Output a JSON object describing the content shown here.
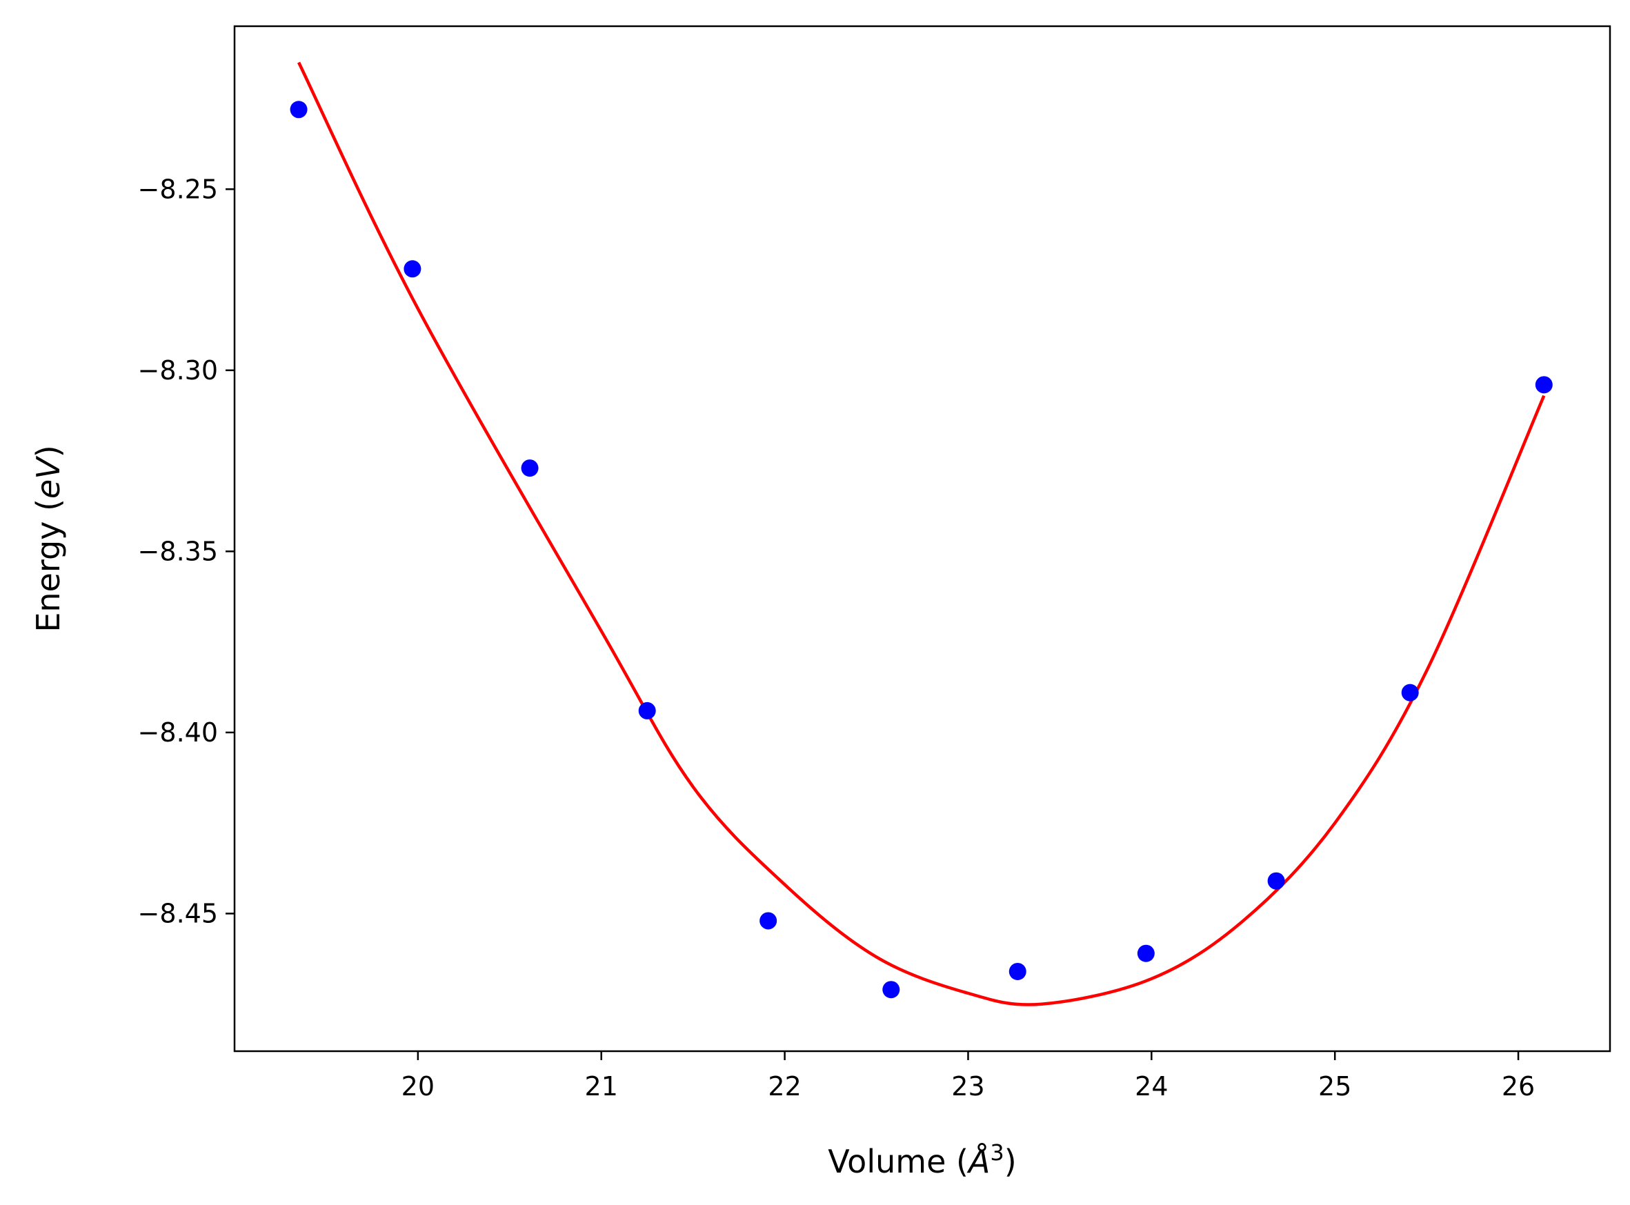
{
  "chart_data": {
    "type": "scatter",
    "xlabel": "Volume (Å³)",
    "ylabel": "Energy (eV)",
    "xlabel_parts": {
      "prefix": "Volume (",
      "symbol": "Å",
      "superscript": "3",
      "suffix": ")"
    },
    "ylabel_parts": {
      "prefix": "Energy (",
      "italic": "eV",
      "suffix": ")"
    },
    "xlim": [
      19.0,
      26.5
    ],
    "ylim": [
      -8.488,
      -8.205
    ],
    "x_ticks": [
      20,
      21,
      22,
      23,
      24,
      25,
      26
    ],
    "x_tick_labels": [
      "20",
      "21",
      "22",
      "23",
      "24",
      "25",
      "26"
    ],
    "y_ticks": [
      -8.25,
      -8.3,
      -8.35,
      -8.4,
      -8.45
    ],
    "y_tick_labels": [
      "−8.25",
      "−8.30",
      "−8.35",
      "−8.40",
      "−8.45"
    ],
    "grid": false,
    "series": [
      {
        "kind": "scatter",
        "color": "#0000ff",
        "points": [
          [
            19.35,
            -8.228
          ],
          [
            19.97,
            -8.272
          ],
          [
            20.61,
            -8.327
          ],
          [
            21.25,
            -8.394
          ],
          [
            21.91,
            -8.452
          ],
          [
            22.58,
            -8.471
          ],
          [
            23.27,
            -8.466
          ],
          [
            23.97,
            -8.461
          ],
          [
            24.68,
            -8.441
          ],
          [
            25.41,
            -8.389
          ],
          [
            26.14,
            -8.304
          ]
        ]
      },
      {
        "kind": "line",
        "color": "#ff0000",
        "points": [
          [
            19.35,
            -8.215
          ],
          [
            20.0,
            -8.283
          ],
          [
            21.0,
            -8.372
          ],
          [
            21.5,
            -8.415
          ],
          [
            22.0,
            -8.442
          ],
          [
            22.5,
            -8.462
          ],
          [
            23.0,
            -8.472
          ],
          [
            23.4,
            -8.475
          ],
          [
            24.0,
            -8.468
          ],
          [
            24.5,
            -8.452
          ],
          [
            25.0,
            -8.425
          ],
          [
            25.5,
            -8.383
          ],
          [
            26.14,
            -8.307
          ]
        ]
      }
    ]
  }
}
